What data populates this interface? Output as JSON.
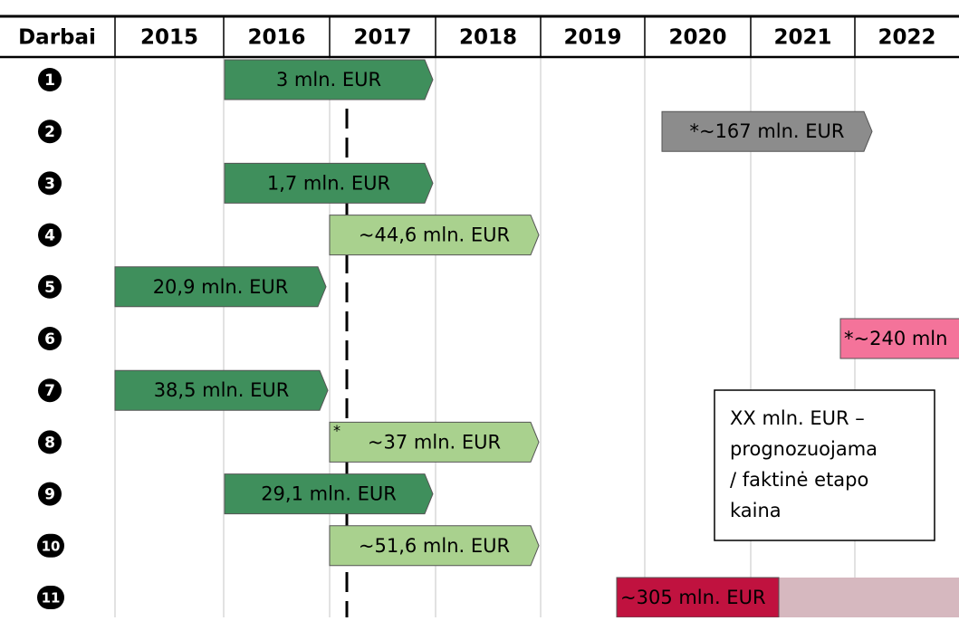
{
  "header": {
    "first": "Darbai",
    "years": [
      "2015",
      "2016",
      "2017",
      "2018",
      "2019",
      "2020",
      "2021",
      "2022"
    ]
  },
  "rows": [
    {
      "marker": "1",
      "label": "3 mln. EUR",
      "color": "#3f8f5c"
    },
    {
      "marker": "2",
      "label": "*~167 mln. EUR",
      "color": "#8c8c8c"
    },
    {
      "marker": "3",
      "label": "1,7 mln. EUR",
      "color": "#3f8f5c"
    },
    {
      "marker": "4",
      "label": "~44,6 mln. EUR",
      "color": "#a9d18e"
    },
    {
      "marker": "5",
      "label": "20,9 mln. EUR",
      "color": "#3f8f5c"
    },
    {
      "marker": "6",
      "label": "*~240 mln",
      "color": "#f4739a"
    },
    {
      "marker": "7",
      "label": "38,5 mln. EUR",
      "color": "#3f8f5c"
    },
    {
      "marker": "8",
      "label": "~37 mln. EUR",
      "note": "*",
      "color": "#a9d18e"
    },
    {
      "marker": "9",
      "label": "29,1 mln. EUR",
      "color": "#3f8f5c"
    },
    {
      "marker": "10",
      "label": "~51,6 mln. EUR",
      "color": "#a9d18e"
    },
    {
      "marker": "11",
      "label": "~305 mln. EUR",
      "color": "#c0123f",
      "color2": "#d6b8bf"
    }
  ],
  "legend": [
    "XX mln. EUR –",
    "prognozuojama",
    "/ faktinė etapo",
    "kaina"
  ]
}
